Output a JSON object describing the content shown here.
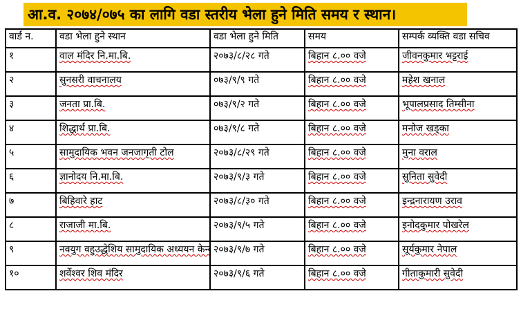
{
  "title": "आ.व. २०७४/०७५ का लागि वडा स्तरीय भेला हुने मिति समय र स्थान।",
  "colors": {
    "title_bg": "#f5c400",
    "spell_underline": "#d40000"
  },
  "table": {
    "headers": {
      "ward": "वार्ड न.",
      "place": "वडा भेला हुने स्थान",
      "date": "वडा भेला हुने मिति",
      "time": "समय",
      "contact": "सम्पर्क व्यक्ति वडा सचिव"
    },
    "rows": [
      {
        "ward": "१",
        "place": "वाल मंदिर नि.मा.बि.",
        "date": "२०७३/८/२८ गते",
        "time": "बिहान ८.०० वजे",
        "contact": "जीवनकुमार भट्टराई"
      },
      {
        "ward": "२",
        "place": "सुनसरी वाचनालय",
        "date": "०७३/९/९ गते",
        "time": "बिहान ८.०० वजे",
        "contact": "महेश खनाल"
      },
      {
        "ward": "३",
        "place": "जनता प्रा.बि.",
        "date": "०७३/९/२ गते",
        "time": "बिहान ८.०० वजे",
        "contact": "भूपालप्रसाद तिम्सीना"
      },
      {
        "ward": "४",
        "place": "शिद्धार्थ प्रा.बि.",
        "date": "०७३/९/८ गते",
        "time": "बिहान ८.०० वजे",
        "contact": "मनोज खड्का"
      },
      {
        "ward": "५",
        "place": "सामुदायिक भवन जनजागृती टोल",
        "date": "२०७३/८/२९ गते",
        "time": "बिहान ८.०० वजे",
        "contact": "मुना वराल"
      },
      {
        "ward": "६",
        "place": "ज्ञानोदय नि.मा.बि.",
        "date": "२०७३/९/३ गते",
        "time": "बिहान ८.०० वजे",
        "contact": "सुनिता सुवेदी"
      },
      {
        "ward": "७",
        "place": "बिहिवारे हाट",
        "date": "२०७३/८/३० गते",
        "time": "बिहान ८.०० वजे",
        "contact": "इन्द्रनारायण उराव"
      },
      {
        "ward": "८",
        "place": "राजाजी मा.बि.",
        "date": "२०७३/९/५ गते",
        "time": "बिहान ८.०० वजे",
        "contact": "इनोदकुमार पोखरेल"
      },
      {
        "ward": "९",
        "place": "नवयुग वहुउद्धेशिय सामुदायिक अध्ययन केन्द",
        "date": "२०७३/९/७ गते",
        "time": "बिहान ८.०० वजे",
        "contact": "सूर्यकुमार नेपाल"
      },
      {
        "ward": "१०",
        "place": "शर्वेश्वर शिव मंदिर",
        "date": "२०७३/९/६ गते",
        "time": "बिहान ८.०० वजे",
        "contact": "गीताकुमारी सुवेदी"
      }
    ]
  }
}
